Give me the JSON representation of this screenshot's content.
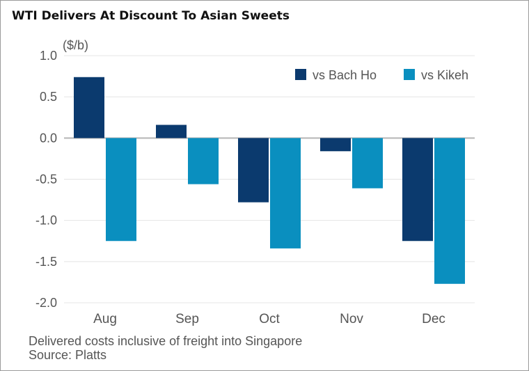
{
  "chart_data": {
    "type": "bar",
    "title": "WTI Delivers At Discount To Asian Sweets",
    "ylabel": "($/b)",
    "xlabel": "",
    "categories": [
      "Aug",
      "Sep",
      "Oct",
      "Nov",
      "Dec"
    ],
    "series": [
      {
        "name": "vs Bach Ho",
        "color": "#0b3a6e",
        "values": [
          0.74,
          0.16,
          -0.78,
          -0.16,
          -1.25
        ]
      },
      {
        "name": "vs Kikeh",
        "color": "#0a8fbf",
        "values": [
          -1.25,
          -0.56,
          -1.34,
          -0.61,
          -1.77
        ]
      }
    ],
    "ylim": [
      -2.0,
      1.0
    ],
    "yticks": [
      "1.0",
      "0.5",
      "0.0",
      "-0.5",
      "-1.0",
      "-1.5",
      "-2.0"
    ],
    "ytick_values": [
      1.0,
      0.5,
      0.0,
      -0.5,
      -1.0,
      -1.5,
      -2.0
    ],
    "grid": true,
    "legend_position": "top-right"
  },
  "footnote": {
    "line1": "Delivered costs inclusive of freight into Singapore",
    "line2": "Source: Platts"
  }
}
